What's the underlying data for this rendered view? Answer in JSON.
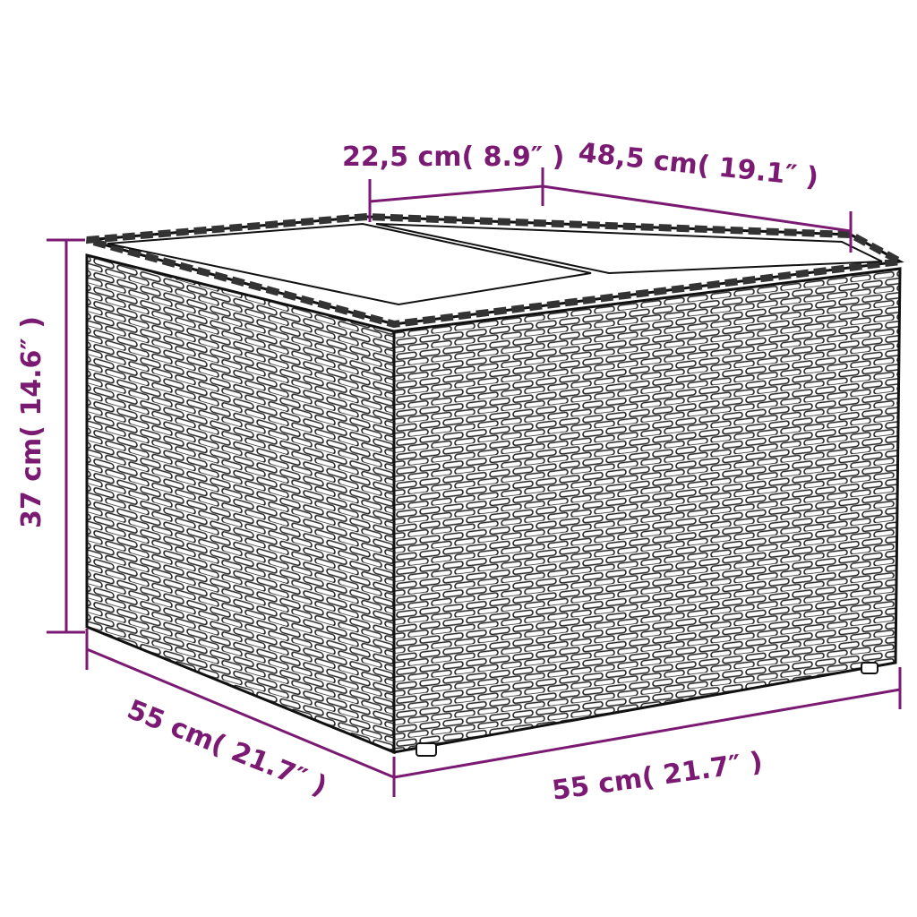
{
  "colors": {
    "dimension": "#7b1a72",
    "outline": "#1a1a1a",
    "background": "#ffffff"
  },
  "dimensions": {
    "top_panel_width": "22,5 cm( 8.9″ )",
    "top_depth": "48,5 cm( 19.1″ )",
    "height": "37 cm( 14.6″ )",
    "left_depth": "55 cm( 21.7″ )",
    "front_width": "55 cm( 21.7″ )"
  }
}
